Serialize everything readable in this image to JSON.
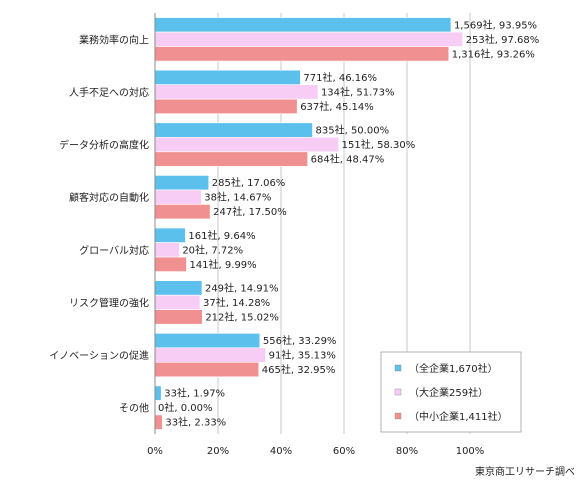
{
  "chart_data": {
    "type": "bar",
    "orientation": "horizontal",
    "categories": [
      "業務効率の向上",
      "人手不足への対応",
      "データ分析の高度化",
      "顧客対応の自動化",
      "グローバル対応",
      "リスク管理の強化",
      "イノベーションの促進",
      "その他"
    ],
    "series": [
      {
        "name": "（全企業1,670社）",
        "color": "#5BC0EB",
        "values": [
          93.95,
          46.16,
          50.0,
          17.06,
          9.64,
          14.91,
          33.29,
          1.97
        ],
        "labels": [
          "1,569社, 93.95%",
          "771社, 46.16%",
          "835社, 50.00%",
          "285社, 17.06%",
          "161社, 9.64%",
          "249社, 14.91%",
          "556社, 33.29%",
          "33社, 1.97%"
        ]
      },
      {
        "name": "（大企業259社）",
        "color": "#F7CCF5",
        "values": [
          97.68,
          51.73,
          58.3,
          14.67,
          7.72,
          14.28,
          35.13,
          0.0
        ],
        "labels": [
          "253社, 97.68%",
          "134社, 51.73%",
          "151社, 58.30%",
          "38社, 14.67%",
          "20社, 7.72%",
          "37社, 14.28%",
          "91社, 35.13%",
          "0社, 0.00%"
        ]
      },
      {
        "name": "（中小企業1,411社）",
        "color": "#F09090",
        "values": [
          93.26,
          45.14,
          48.47,
          17.5,
          9.99,
          15.02,
          32.95,
          2.33
        ],
        "labels": [
          "1,316社, 93.26%",
          "637社, 45.14%",
          "684社, 48.47%",
          "247社, 17.50%",
          "141社, 9.99%",
          "212社, 15.02%",
          "465社, 32.95%",
          "33社, 2.33%"
        ]
      }
    ],
    "xlim": [
      0,
      100
    ],
    "xticks": [
      "0%",
      "20%",
      "40%",
      "60%",
      "80%",
      "100%"
    ],
    "grid": true,
    "legend_position": "bottom-right"
  },
  "source_note": "東京商工リサーチ調べ"
}
